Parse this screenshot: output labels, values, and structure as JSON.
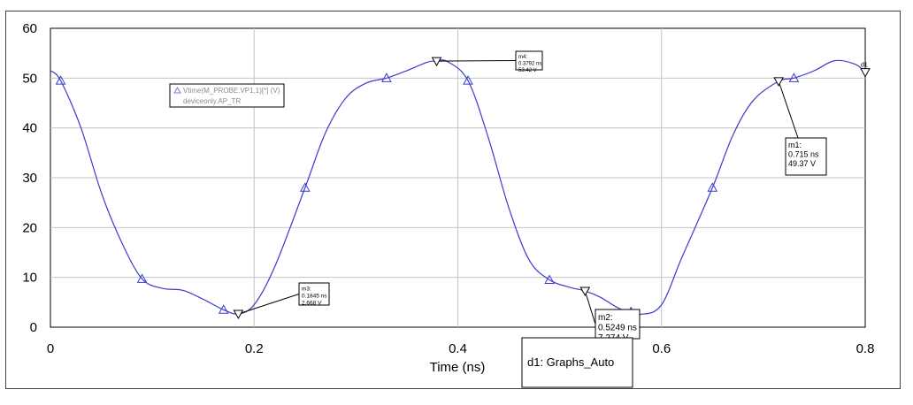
{
  "chart_data": {
    "type": "line",
    "xlabel": "Time (ns)",
    "ylabel": "",
    "xlim": [
      0,
      0.8
    ],
    "ylim": [
      0,
      60
    ],
    "x_ticks": [
      "0",
      "0.2",
      "0.4",
      "0.6",
      "0.8"
    ],
    "y_ticks": [
      "0",
      "10",
      "20",
      "30",
      "40",
      "50",
      "60"
    ],
    "grid": true,
    "series": [
      {
        "name": "Vtime(M_PROBE.VP1,1)[*] (V)",
        "source": "deviceonly.AP_TR",
        "color": "#3a3acd",
        "marker": "open-triangle-up",
        "x": [
          0,
          0.01,
          0.03,
          0.05,
          0.07,
          0.09,
          0.11,
          0.13,
          0.15,
          0.17,
          0.1845,
          0.2,
          0.22,
          0.25,
          0.27,
          0.29,
          0.31,
          0.33,
          0.35,
          0.37,
          0.3792,
          0.39,
          0.41,
          0.43,
          0.45,
          0.47,
          0.49,
          0.51,
          0.5249,
          0.54,
          0.56,
          0.58,
          0.6,
          0.62,
          0.65,
          0.67,
          0.69,
          0.715,
          0.73,
          0.75,
          0.77,
          0.79,
          0.8
        ],
        "y": [
          51.5,
          49.5,
          40,
          27,
          17,
          9.7,
          7.8,
          7.4,
          5.6,
          3.5,
          2.67,
          4.5,
          12,
          28,
          39,
          46,
          49,
          50,
          51.5,
          53.2,
          53.42,
          53.3,
          49.5,
          38,
          24,
          13.5,
          9.5,
          8.0,
          7.27,
          6.0,
          3.6,
          2.6,
          4.5,
          14,
          28,
          38.5,
          45.5,
          49.37,
          50,
          51.5,
          53.5,
          52.8,
          51.2
        ],
        "marker_x": [
          0.01,
          0.09,
          0.17,
          0.25,
          0.33,
          0.41,
          0.49,
          0.57,
          0.65,
          0.73
        ]
      }
    ],
    "legend": {
      "placement": "top-left",
      "lines": [
        "Vtime(M_PROBE.VP1,1)[*] (V)",
        "deviceonly.AP_TR"
      ]
    },
    "markers": [
      {
        "id": "m1",
        "x": 0.715,
        "y": 49.37,
        "lines": [
          "m1:",
          "0.715 ns",
          "49.37 V"
        ]
      },
      {
        "id": "m2",
        "x": 0.5249,
        "y": 7.274,
        "lines": [
          "m2:",
          "0.5249 ns",
          "7.274 V"
        ]
      },
      {
        "id": "m3",
        "x": 0.1845,
        "y": 2.668,
        "lines": [
          "m3:",
          "0.1845 ns",
          "2.668 V"
        ]
      },
      {
        "id": "m4",
        "x": 0.3792,
        "y": 53.42,
        "lines": [
          "m4:",
          "0.3792 ns",
          "53.42 V"
        ]
      }
    ],
    "end_marker_label": "d1",
    "tooltip": "d1: Graphs_Auto"
  }
}
